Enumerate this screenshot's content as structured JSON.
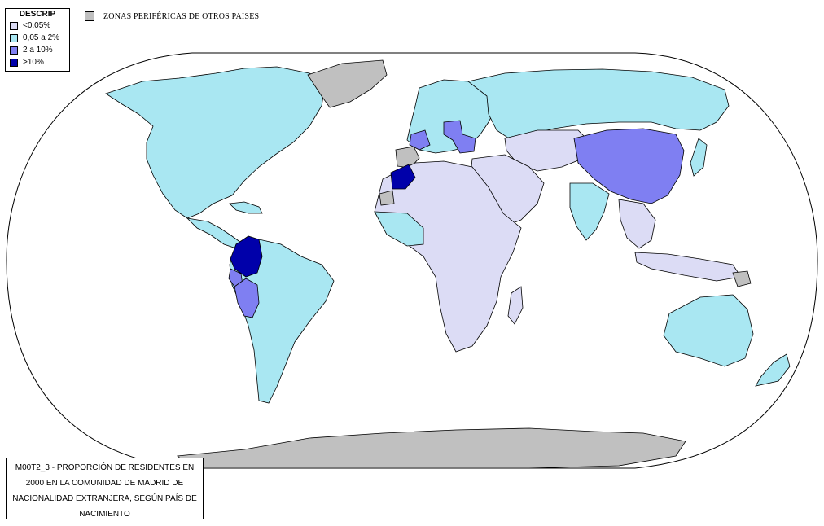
{
  "legend": {
    "title": "DESCRIP",
    "items": [
      {
        "label": "<0,05%",
        "color": "#dcdcf5"
      },
      {
        "label": "0,05 a 2%",
        "color": "#a9e7f2"
      },
      {
        "label": "2 a 10%",
        "color": "#7f7ff2"
      },
      {
        "label": ">10%",
        "color": "#0000aa"
      }
    ]
  },
  "peripheral": {
    "label": "ZONAS PERIFÉRICAS DE OTROS PAISES",
    "color": "#c0c0c0"
  },
  "caption": {
    "lines": [
      "M00T2_3 - PROPORCIÓN DE RESIDENTES EN",
      "2000 EN LA COMUNIDAD DE MADRID DE",
      "NACIONALIDAD EXTRANJERA, SEGÚN PAÍS DE",
      "NACIMIENTO"
    ]
  }
}
